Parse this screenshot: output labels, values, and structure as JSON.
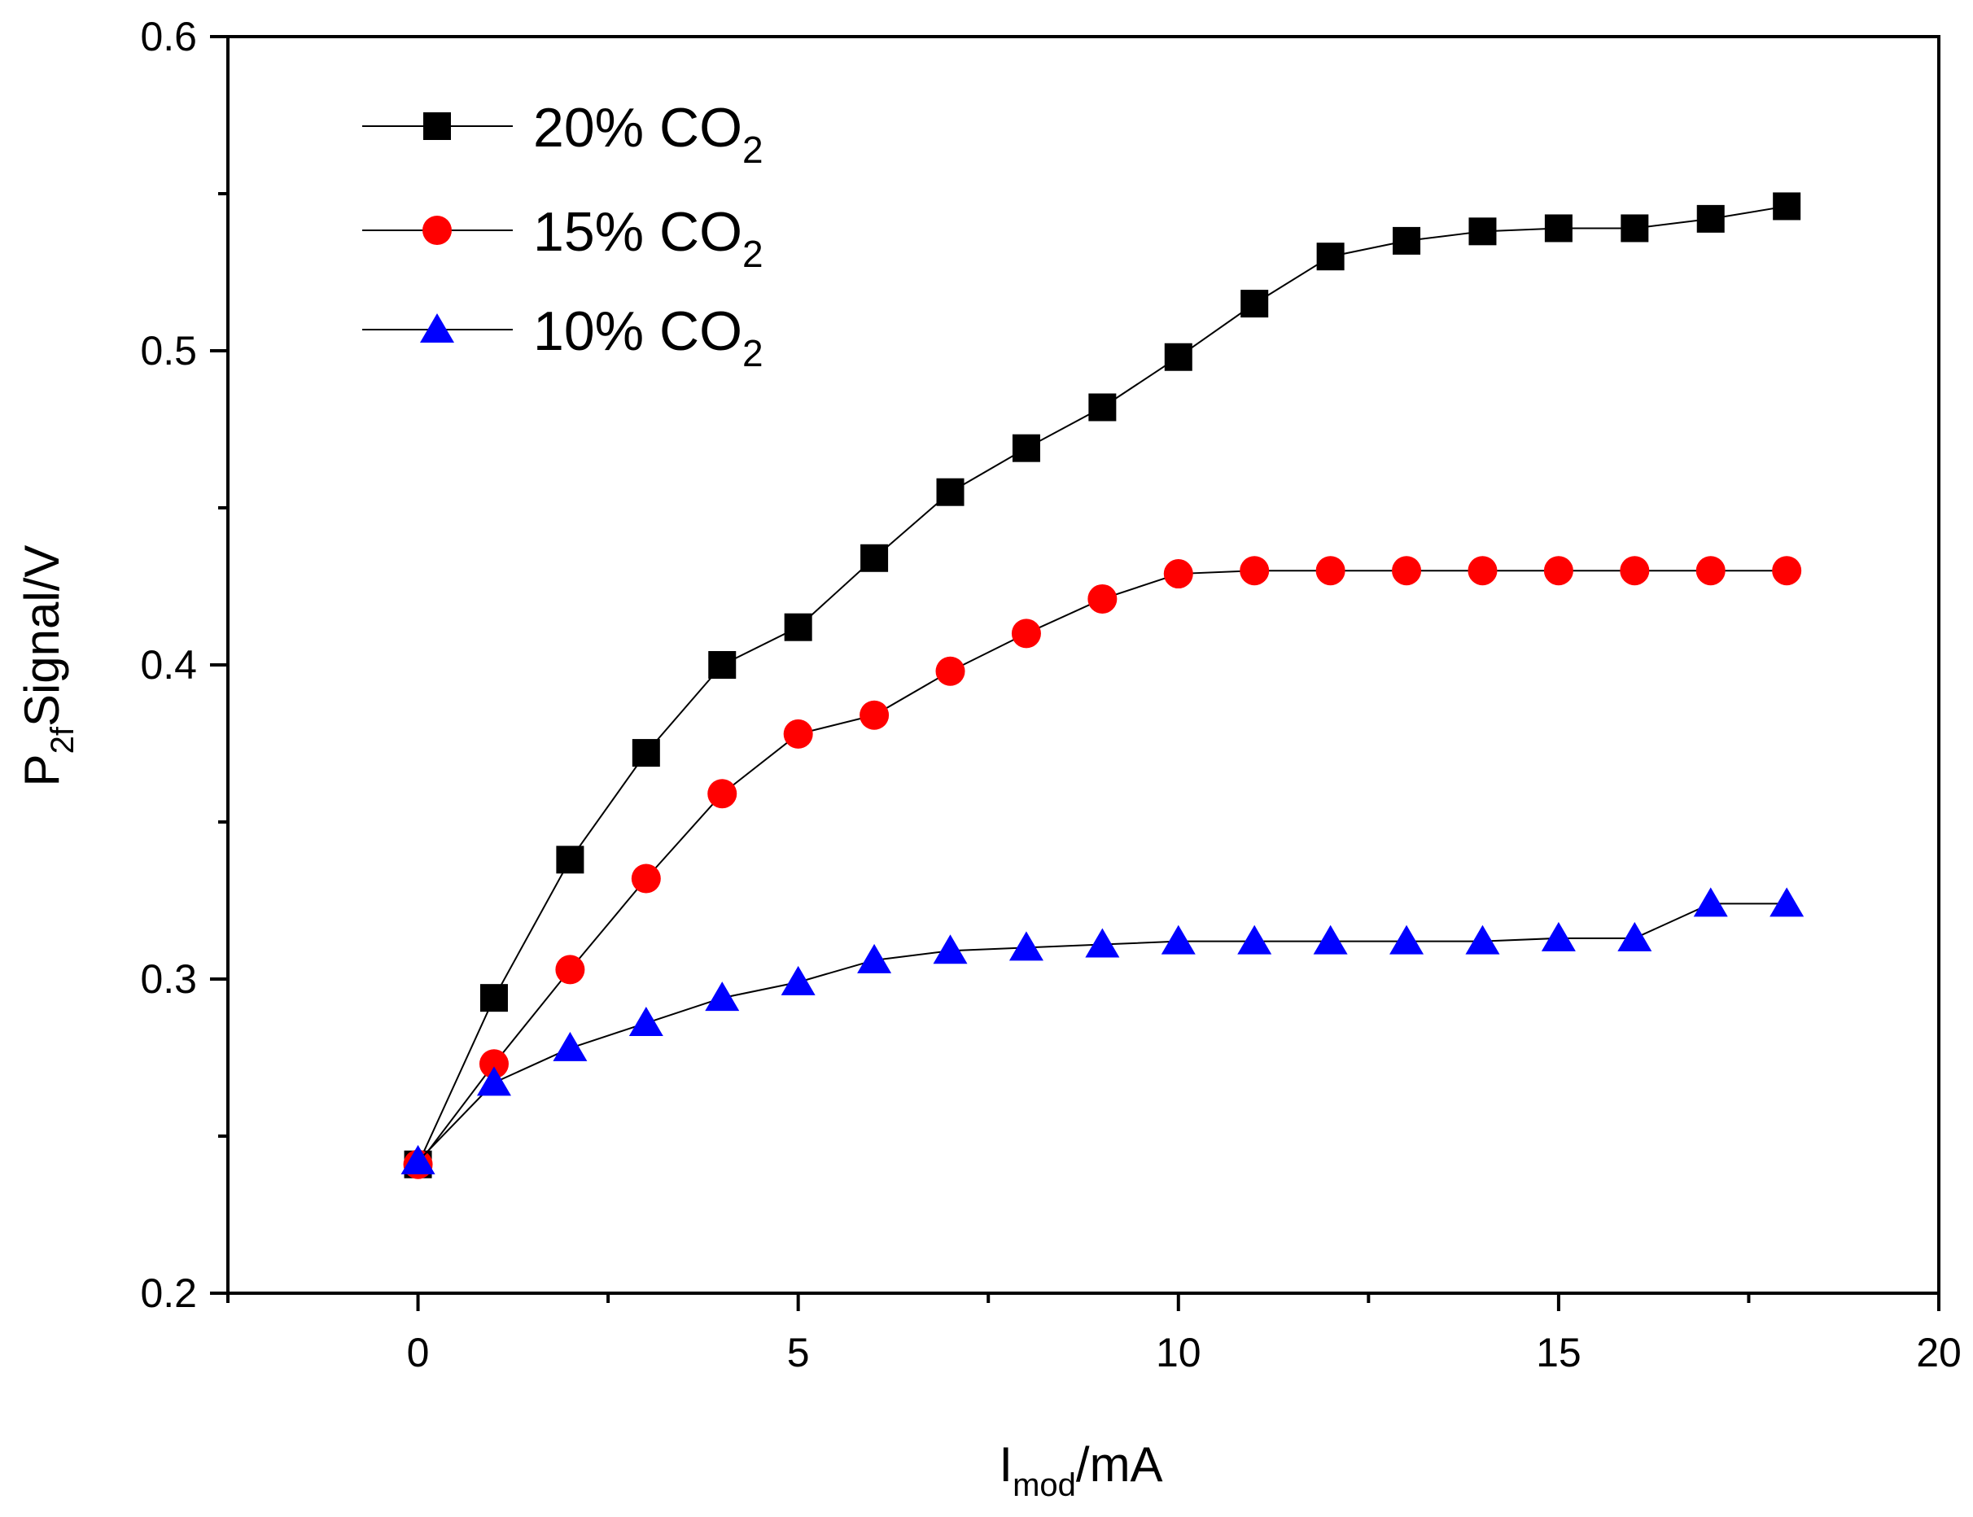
{
  "chart_data": {
    "type": "line",
    "title": "",
    "xlabel": {
      "main": "I",
      "sub": "mod",
      "suffix": "/mA"
    },
    "ylabel": {
      "main": "P",
      "sub": "2f",
      "suffix": "Signal/V"
    },
    "xlim": [
      -2.5,
      20
    ],
    "ylim": [
      0.2,
      0.6
    ],
    "x_ticks": [
      "0",
      "5",
      "10",
      "15",
      "20"
    ],
    "y_ticks": [
      "0.2",
      "0.3",
      "0.4",
      "0.5",
      "0.6"
    ],
    "grid": false,
    "legend_position": "top-left",
    "x": [
      0,
      1,
      2,
      3,
      4,
      5,
      6,
      7,
      8,
      9,
      10,
      11,
      12,
      13,
      14,
      15,
      16,
      17,
      18
    ],
    "series": [
      {
        "name": "20% CO",
        "name_sub": "2",
        "marker": "square",
        "color": "#000000",
        "values": [
          0.241,
          0.294,
          0.338,
          0.372,
          0.4,
          0.412,
          0.434,
          0.455,
          0.469,
          0.482,
          0.498,
          0.515,
          0.53,
          0.535,
          0.538,
          0.539,
          0.539,
          0.542,
          0.546
        ]
      },
      {
        "name": "15% CO",
        "name_sub": "2",
        "marker": "circle",
        "color": "#ff0000",
        "values": [
          0.241,
          0.273,
          0.303,
          0.332,
          0.359,
          0.378,
          0.384,
          0.398,
          0.41,
          0.421,
          0.429,
          0.43,
          0.43,
          0.43,
          0.43,
          0.43,
          0.43,
          0.43,
          0.43
        ]
      },
      {
        "name": "10% CO",
        "name_sub": "2",
        "marker": "triangle",
        "color": "#0000ff",
        "values": [
          0.242,
          0.267,
          0.278,
          0.286,
          0.294,
          0.299,
          0.306,
          0.309,
          0.31,
          0.311,
          0.312,
          0.312,
          0.312,
          0.312,
          0.312,
          0.313,
          0.313,
          0.324,
          0.324
        ]
      }
    ]
  }
}
